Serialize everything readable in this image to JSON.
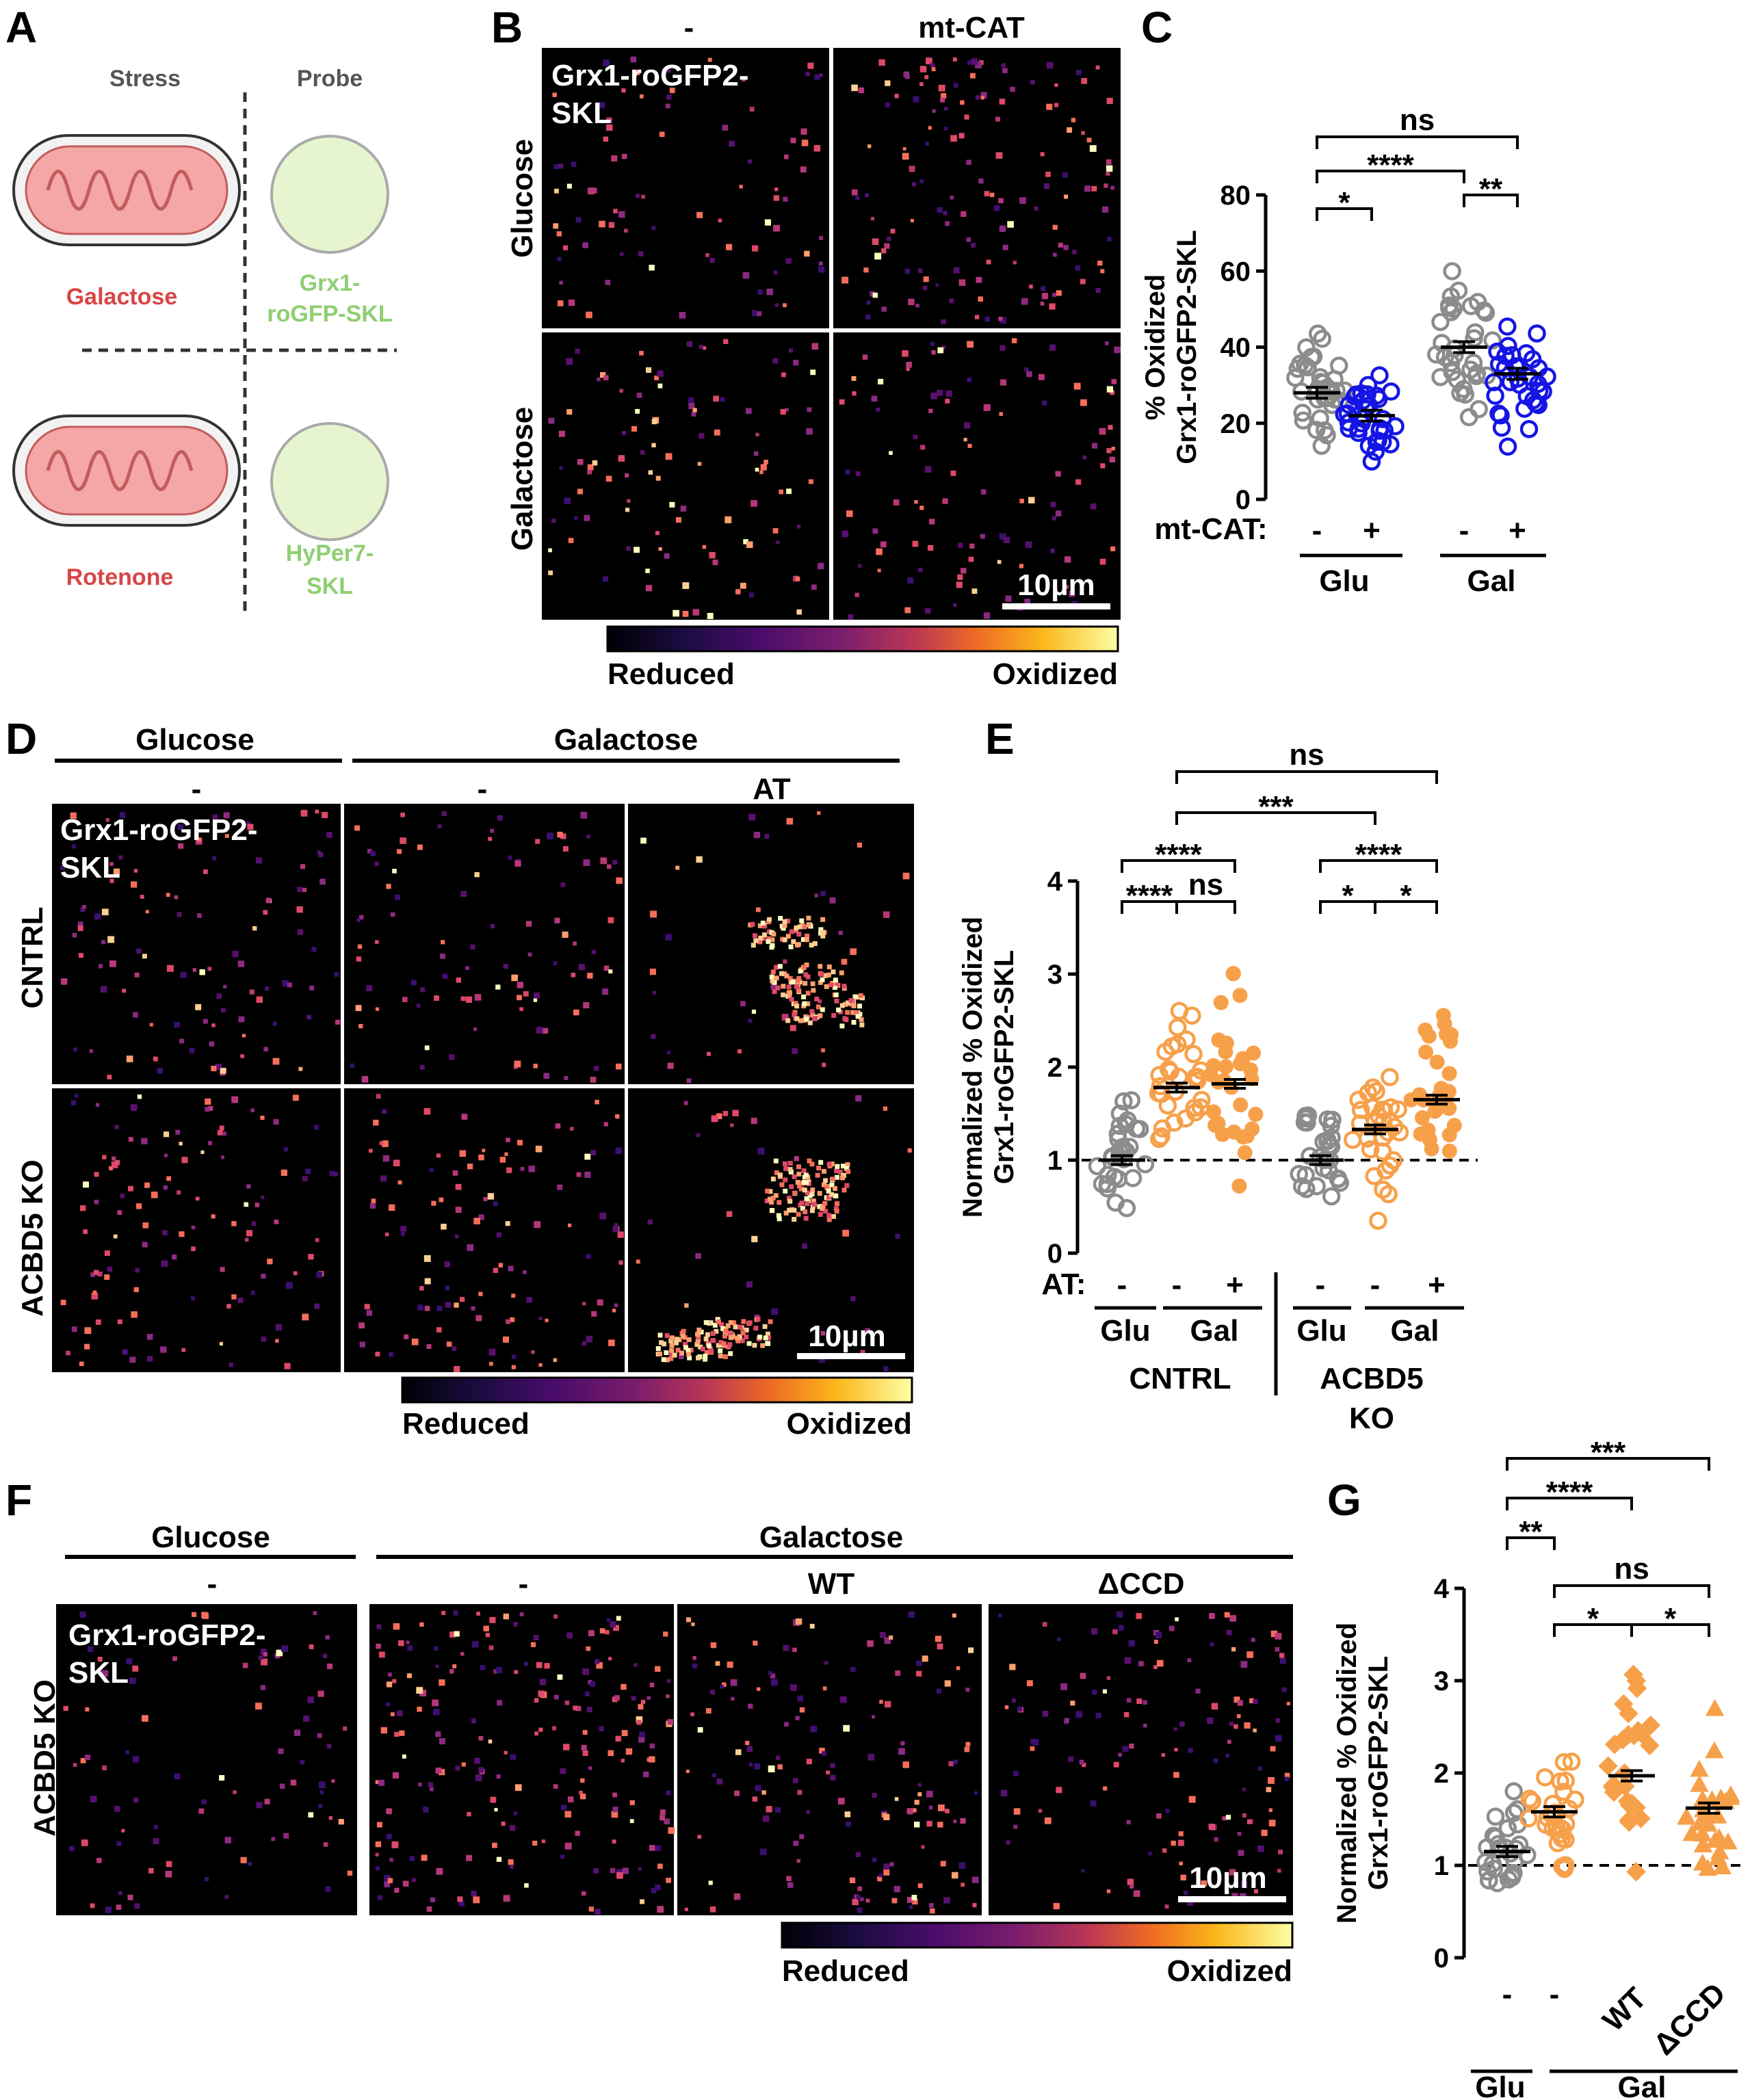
{
  "panels": {
    "A": {
      "letter": "A",
      "stress_header": "Stress",
      "probe_header": "Probe",
      "stress1": "Galactose",
      "probe1_line1": "Grx1-",
      "probe1_line2": "roGFP-SKL",
      "stress2": "Rotenone",
      "probe2_line1": "HyPer7-",
      "probe2_line2": "SKL"
    },
    "B": {
      "letter": "B",
      "col1": "-",
      "col2": "mt-CAT",
      "row1": "Glucose",
      "row2": "Galactose",
      "probe_line1": "Grx1-roGFP2-",
      "probe_line2": "SKL",
      "scalebar": "10µm",
      "cbar_low": "Reduced",
      "cbar_high": "Oxidized"
    },
    "D": {
      "letter": "D",
      "group1": "Glucose",
      "group2": "Galactose",
      "col1": "-",
      "col2": "-",
      "col3": "AT",
      "row1": "CNTRL",
      "row2": "ACBD5 KO",
      "probe_line1": "Grx1-roGFP2-",
      "probe_line2": "SKL",
      "scalebar": "10µm",
      "cbar_low": "Reduced",
      "cbar_high": "Oxidized"
    },
    "F": {
      "letter": "F",
      "group1": "Glucose",
      "group2": "Galactose",
      "col1": "-",
      "col2": "-",
      "col3": "WT",
      "col4": "ΔCCD",
      "row1": "ACBD5 KO",
      "probe_line1": "Grx1-roGFP2-",
      "probe_line2": "SKL",
      "scalebar": "10µm",
      "cbar_low": "Reduced",
      "cbar_high": "Oxidized"
    }
  },
  "colors": {
    "grey": "#8c8c8c",
    "blue": "#1515e6",
    "orange": "#f7a04a",
    "galactose_text": "#f07d1e",
    "mtcat_text": "#1010e0",
    "mito_fill": "#f5a6a6",
    "probe_fill": "#e6f5cf",
    "schem_red": "#d94545",
    "schem_green": "#8ecf72"
  },
  "chart_data": [
    {
      "panel": "C",
      "type": "scatter",
      "ylabel_line1": "% Oxidized",
      "ylabel_line2": "Grx1-roGFP2-SKL",
      "ylim": [
        0,
        80
      ],
      "yticks": [
        "0",
        "20",
        "40",
        "60",
        "80"
      ],
      "row_label": "mt-CAT:",
      "categories": [
        {
          "treat": "-",
          "group": "Glu",
          "mean": 28,
          "color": "grey",
          "marker": "open-circle"
        },
        {
          "treat": "+",
          "group": "Glu",
          "mean": 22,
          "color": "blue",
          "marker": "open-circle"
        },
        {
          "treat": "-",
          "group": "Gal",
          "mean": 40,
          "color": "grey",
          "marker": "open-circle"
        },
        {
          "treat": "+",
          "group": "Gal",
          "mean": 33,
          "color": "blue",
          "marker": "open-circle"
        }
      ],
      "groups": [
        "Glu",
        "Gal"
      ],
      "significance": [
        {
          "from": 0,
          "to": 1,
          "label": "*"
        },
        {
          "from": 0,
          "to": 2,
          "label": "****"
        },
        {
          "from": 2,
          "to": 3,
          "label": "**"
        },
        {
          "from": 0,
          "to": 3,
          "label": "ns"
        }
      ]
    },
    {
      "panel": "E",
      "type": "scatter",
      "ylabel_line1": "Normalized % Oxidized",
      "ylabel_line2": "Grx1-roGFP2-SKL",
      "ylim": [
        0,
        4
      ],
      "yticks": [
        "0",
        "1",
        "2",
        "3",
        "4"
      ],
      "reference_line": 1,
      "row_label": "AT:",
      "categories": [
        {
          "treat": "-",
          "group": "Glu",
          "mean": 1.0,
          "color": "grey",
          "marker": "open-circle"
        },
        {
          "treat": "-",
          "group": "Gal",
          "mean": 1.78,
          "color": "orange",
          "marker": "open-circle"
        },
        {
          "treat": "+",
          "group": "Gal",
          "mean": 1.82,
          "color": "orange",
          "marker": "filled-circle"
        },
        {
          "treat": "-",
          "group": "Glu",
          "mean": 1.0,
          "color": "grey",
          "marker": "open-circle"
        },
        {
          "treat": "-",
          "group": "Gal",
          "mean": 1.33,
          "color": "orange",
          "marker": "open-circle"
        },
        {
          "treat": "+",
          "group": "Gal",
          "mean": 1.65,
          "color": "orange",
          "marker": "filled-circle"
        }
      ],
      "groups": [
        "Glu",
        "Gal",
        "Glu",
        "Gal"
      ],
      "cell_lines": [
        "CNTRL",
        "ACBD5",
        "KO"
      ],
      "significance": [
        {
          "from": 0,
          "to": 1,
          "label": "****"
        },
        {
          "from": 1,
          "to": 2,
          "label": "ns"
        },
        {
          "from": 0,
          "to": 2,
          "label": "****"
        },
        {
          "from": 3,
          "to": 4,
          "label": "*"
        },
        {
          "from": 4,
          "to": 5,
          "label": "*"
        },
        {
          "from": 3,
          "to": 5,
          "label": "****"
        },
        {
          "from": 1,
          "to": 4,
          "label": "***"
        },
        {
          "from": 1,
          "to": 5,
          "label": "ns"
        }
      ]
    },
    {
      "panel": "G",
      "type": "scatter",
      "ylabel_line1": "Normalized % Oxidized",
      "ylabel_line2": "Grx1-roGFP2-SKL",
      "ylim": [
        0,
        4
      ],
      "yticks": [
        "0",
        "1",
        "2",
        "3",
        "4"
      ],
      "reference_line": 1,
      "categories": [
        {
          "treat": "-",
          "mean": 1.15,
          "color": "grey",
          "marker": "open-circle"
        },
        {
          "treat": "-",
          "mean": 1.58,
          "color": "orange",
          "marker": "open-circle"
        },
        {
          "treat": "WT",
          "mean": 1.97,
          "color": "orange",
          "marker": "diamond"
        },
        {
          "treat": "ΔCCD",
          "mean": 1.62,
          "color": "orange",
          "marker": "triangle"
        }
      ],
      "groups": [
        "Glu",
        "Gal"
      ],
      "significance": [
        {
          "from": 0,
          "to": 1,
          "label": "**"
        },
        {
          "from": 0,
          "to": 2,
          "label": "****"
        },
        {
          "from": 0,
          "to": 3,
          "label": "***"
        },
        {
          "from": 1,
          "to": 2,
          "label": "*"
        },
        {
          "from": 2,
          "to": 3,
          "label": "*"
        },
        {
          "from": 1,
          "to": 3,
          "label": "ns"
        }
      ]
    }
  ]
}
